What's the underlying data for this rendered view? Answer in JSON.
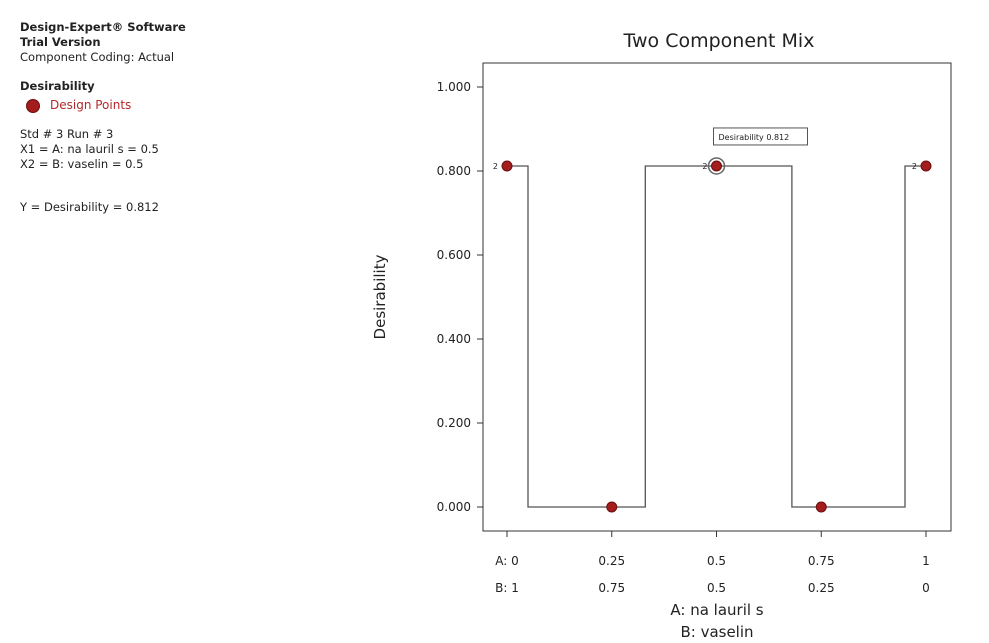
{
  "info": {
    "software": "Design-Expert® Software",
    "version": "Trial Version",
    "coding": "Component Coding: Actual",
    "response": "Desirability",
    "legend_label": "Design Points",
    "std_run": "Std # 3 Run # 3",
    "x1": "X1 = A: na lauril s = 0.5",
    "x2": "X2 = B: vaselin = 0.5",
    "y": "Y = Desirability = 0.812"
  },
  "colors": {
    "point": "#a51c1c",
    "line": "#555555"
  },
  "chart_data": {
    "type": "line",
    "title": "Two Component Mix",
    "ylabel": "Desirability",
    "xlabel_a": "A: na lauril s",
    "xlabel_b": "B: vaselin",
    "xlim": [
      0,
      1
    ],
    "ylim": [
      0,
      1
    ],
    "y_ticks": [
      "0.000",
      "0.200",
      "0.400",
      "0.600",
      "0.800",
      "1.000"
    ],
    "y_tick_values": [
      0,
      0.2,
      0.4,
      0.6,
      0.8,
      1.0
    ],
    "a_ticks": [
      "A: 0",
      "0.25",
      "0.5",
      "0.75",
      "1"
    ],
    "b_ticks": [
      "B: 1",
      "0.75",
      "0.5",
      "0.25",
      "0"
    ],
    "x_tick_values": [
      0,
      0.25,
      0.5,
      0.75,
      1
    ],
    "curve": {
      "x": [
        0,
        0.05,
        0.05,
        0.33,
        0.33,
        0.68,
        0.68,
        0.95,
        0.95,
        1
      ],
      "y": [
        0.812,
        0.812,
        0,
        0,
        0.812,
        0.812,
        0,
        0,
        0.812,
        0.812
      ]
    },
    "design_points": [
      {
        "a": 0,
        "value": 0.812,
        "label": "2"
      },
      {
        "a": 0.25,
        "value": 0,
        "label": ""
      },
      {
        "a": 0.5,
        "value": 0.812,
        "label": "2"
      },
      {
        "a": 0.75,
        "value": 0,
        "label": ""
      },
      {
        "a": 1,
        "value": 0.812,
        "label": "2"
      }
    ],
    "highlight": {
      "a": 0.5,
      "value": 0.812,
      "text": "Desirability 0.812"
    }
  }
}
